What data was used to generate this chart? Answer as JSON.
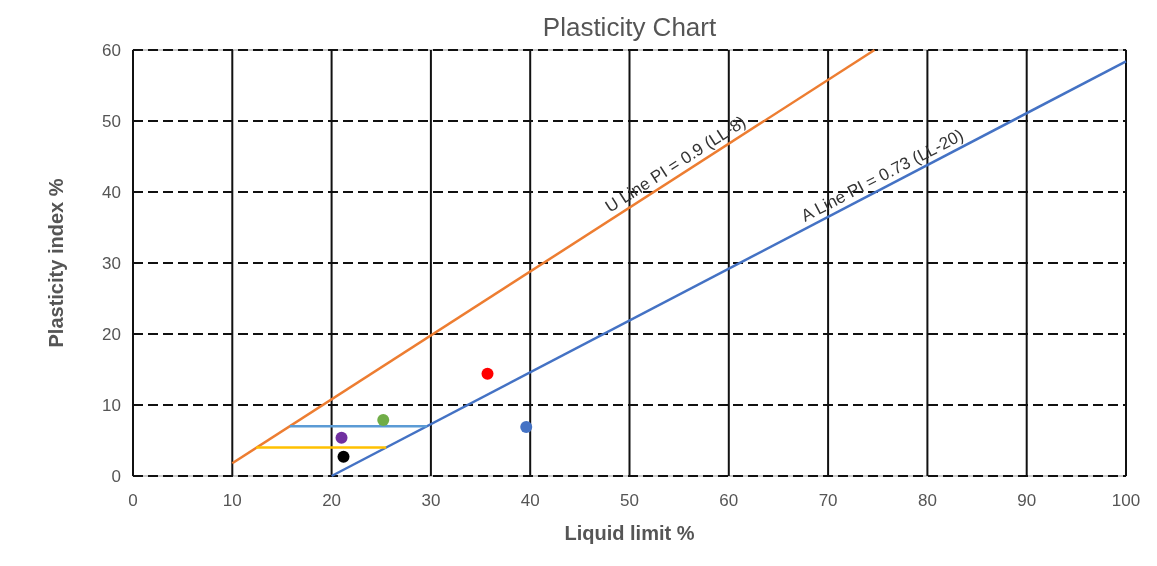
{
  "chart_data": {
    "type": "scatter",
    "title": "Plasticity Chart",
    "xlabel": "Liquid limit %",
    "ylabel": "Plasticity index %",
    "xlim": [
      0,
      100
    ],
    "xticks": [
      0,
      10,
      20,
      30,
      40,
      50,
      60,
      70,
      80,
      90,
      100
    ],
    "ylim": [
      0,
      60
    ],
    "yticks": [
      0,
      10,
      20,
      30,
      40,
      50,
      60
    ],
    "grid": true,
    "series": [
      {
        "type": "line",
        "name": "U Line PI = 0.9 (LL-8)",
        "color": "#ed7d31",
        "x": [
          10,
          74.67
        ],
        "values": [
          1.8,
          60
        ]
      },
      {
        "type": "line",
        "name": "A Line PI = 0.73 (LL-20)",
        "color": "#4472c4",
        "x": [
          20,
          100
        ],
        "values": [
          0,
          58.4
        ]
      },
      {
        "type": "line",
        "color": "#5b9bd5",
        "x": [
          15.8,
          29.6
        ],
        "values": [
          7,
          7
        ]
      },
      {
        "type": "line",
        "color": "#ffc000",
        "x": [
          12.4,
          25.5
        ],
        "values": [
          4,
          4
        ]
      },
      {
        "marker": "circle",
        "x": [
          35.7,
          25.2,
          21.0,
          21.2,
          39.6
        ],
        "values": [
          14.4,
          7.9,
          5.4,
          2.7,
          6.9
        ],
        "colors": [
          "#ff0000",
          "#70ad47",
          "#7030a0",
          "#000000",
          "#4472c4"
        ]
      }
    ]
  }
}
